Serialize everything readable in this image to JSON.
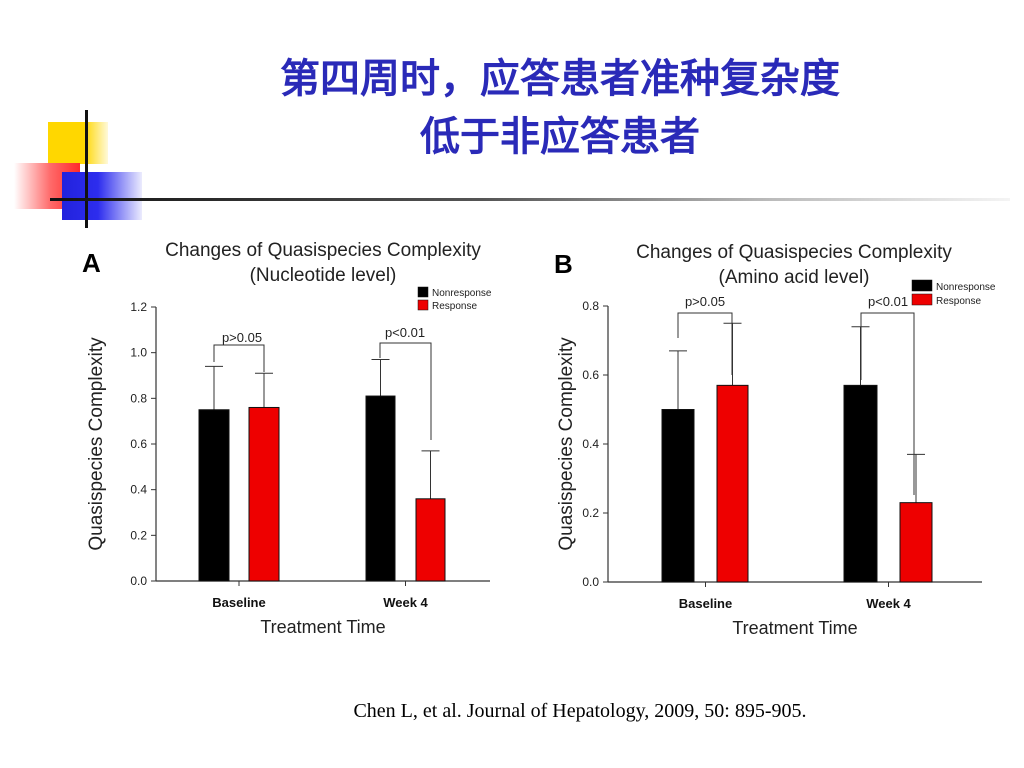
{
  "slide": {
    "title_line1": "第四周时，应答患者准种复杂度",
    "title_line2": "低于非应答患者",
    "citation": "Chen L, et al.  Journal of Hepatology, 2009, 50: 895-905."
  },
  "colors": {
    "title": "#2a2ab8",
    "nonresponse": "#000000",
    "response": "#ee0000"
  },
  "chart_data": [
    {
      "type": "bar",
      "panel": "A",
      "title": "Changes of Quasispecies Complexity",
      "subtitle": "(Nucleotide level)",
      "xlabel": "Treatment Time",
      "ylabel": "Quasispecies Complexity",
      "categories": [
        "Baseline",
        "Week 4"
      ],
      "ylim": [
        0,
        1.2
      ],
      "yticks": [
        "0.0",
        "0.2",
        "0.4",
        "0.6",
        "0.8",
        "1.0",
        "1.2"
      ],
      "legend_position": "top-right",
      "series": [
        {
          "name": "Nonresponse",
          "color": "#000000",
          "values": [
            0.75,
            0.81
          ],
          "errors": [
            0.19,
            0.16
          ]
        },
        {
          "name": "Response",
          "color": "#ee0000",
          "values": [
            0.76,
            0.36
          ],
          "errors": [
            0.15,
            0.21
          ]
        }
      ],
      "annotations": [
        "p>0.05",
        "p<0.01"
      ]
    },
    {
      "type": "bar",
      "panel": "B",
      "title": "Changes of Quasispecies Complexity",
      "subtitle": "(Amino acid level)",
      "xlabel": "Treatment Time",
      "ylabel": "Quasispecies Complexity",
      "categories": [
        "Baseline",
        "Week 4"
      ],
      "ylim": [
        0,
        0.8
      ],
      "yticks": [
        "0.0",
        "0.2",
        "0.4",
        "0.6",
        "0.8"
      ],
      "legend_position": "top-right",
      "series": [
        {
          "name": "Nonresponse",
          "color": "#000000",
          "values": [
            0.5,
            0.57
          ],
          "errors": [
            0.17,
            0.17
          ]
        },
        {
          "name": "Response",
          "color": "#ee0000",
          "values": [
            0.57,
            0.23
          ],
          "errors": [
            0.18,
            0.14
          ]
        }
      ],
      "annotations": [
        "p>0.05",
        "p<0.01"
      ]
    }
  ]
}
